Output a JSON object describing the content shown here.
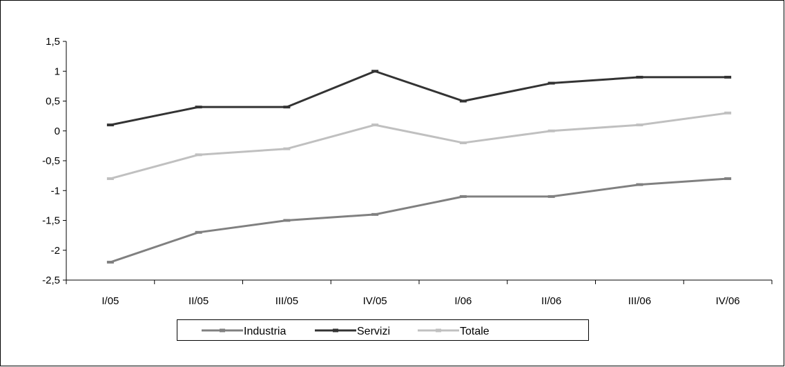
{
  "chart_data": {
    "type": "line",
    "title": "",
    "xlabel": "",
    "ylabel": "",
    "categories": [
      "I/05",
      "II/05",
      "III/05",
      "IV/05",
      "I/06",
      "II/06",
      "III/06",
      "IV/06"
    ],
    "yticks": [
      "1,5",
      "1",
      "0,5",
      "0",
      "-0,5",
      "-1",
      "-1,5",
      "-2",
      "-2,5"
    ],
    "ylim": [
      -2.5,
      1.5
    ],
    "grid": false,
    "legend_position": "bottom",
    "series": [
      {
        "name": "Industria",
        "color": "#808080",
        "values": [
          -2.2,
          -1.7,
          -1.5,
          -1.4,
          -1.1,
          -1.1,
          -0.9,
          -0.8
        ]
      },
      {
        "name": "Servizi",
        "color": "#333333",
        "values": [
          0.1,
          0.4,
          0.4,
          1.0,
          0.5,
          0.8,
          0.9,
          0.9
        ]
      },
      {
        "name": "Totale",
        "color": "#c0c0c0",
        "values": [
          -0.8,
          -0.4,
          -0.3,
          0.1,
          -0.2,
          0.0,
          0.1,
          0.3
        ]
      }
    ]
  }
}
